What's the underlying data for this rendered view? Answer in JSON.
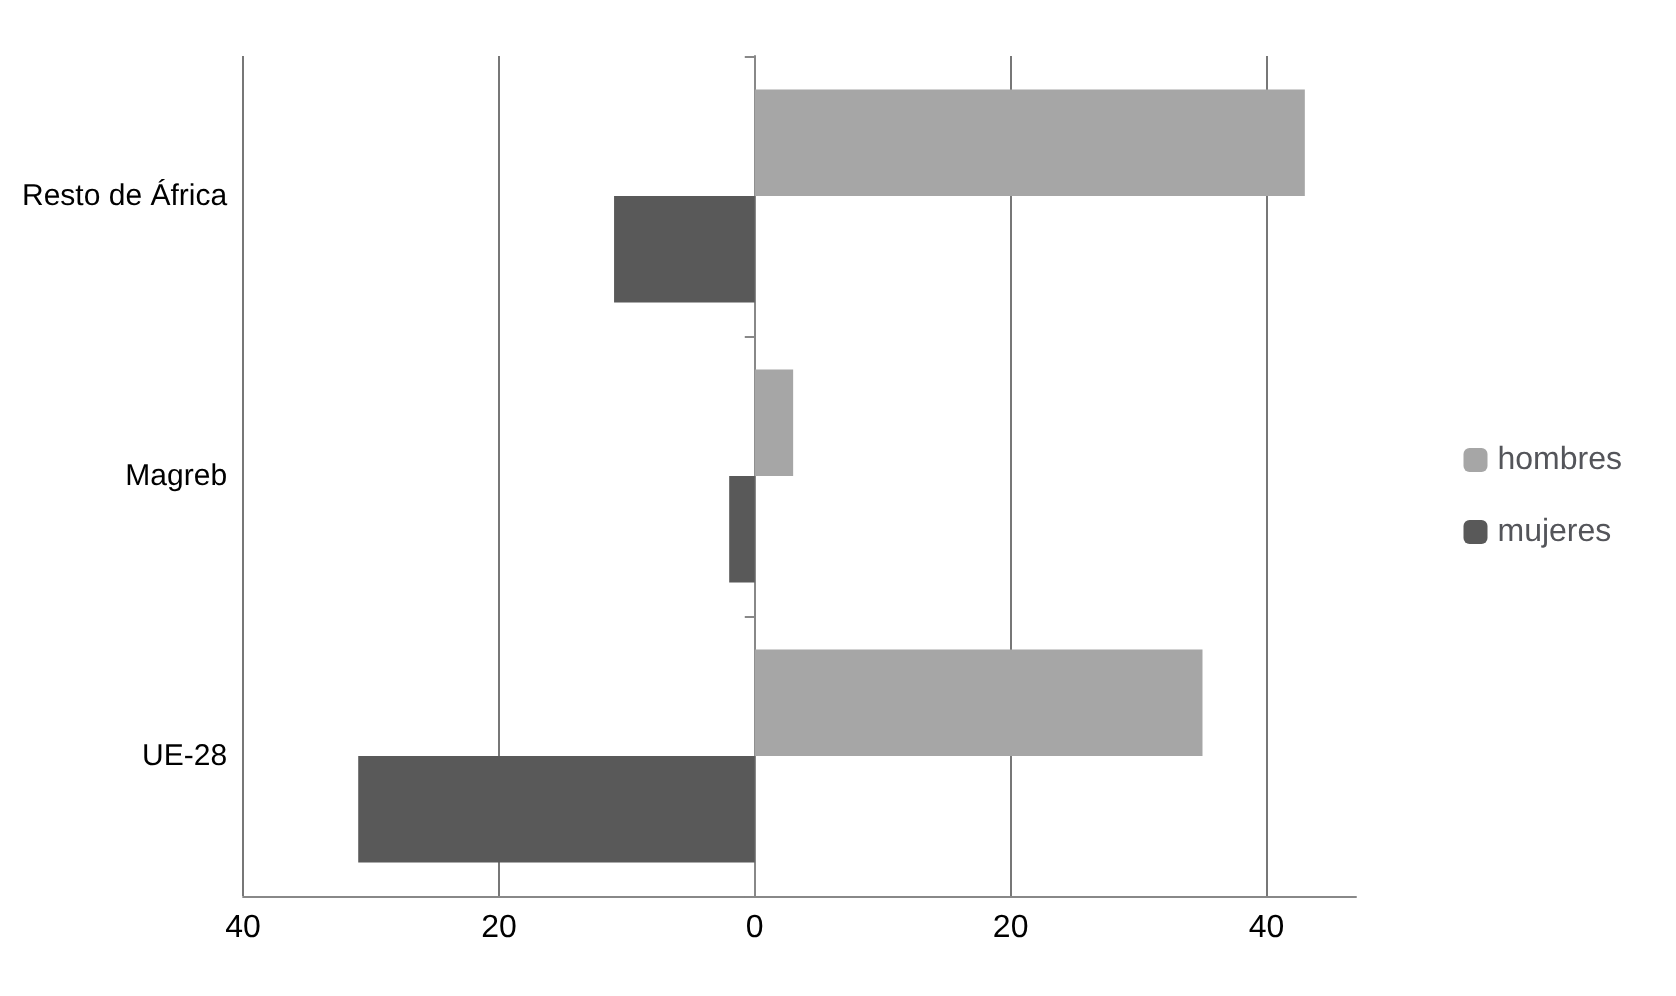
{
  "chart_data": {
    "type": "bar",
    "orientation": "horizontal",
    "categories": [
      "Resto de África",
      "Magreb",
      "UE-28"
    ],
    "series": [
      {
        "name": "hombres",
        "color": "#a6a6a6",
        "values": [
          43,
          3,
          35
        ]
      },
      {
        "name": "mujeres",
        "color": "#595959",
        "values": [
          -11,
          -2,
          -31
        ]
      }
    ],
    "xlim": [
      -40,
      47
    ],
    "xticks": [
      {
        "value": -40,
        "label": "40"
      },
      {
        "value": -20,
        "label": "20"
      },
      0,
      20,
      40
    ],
    "grid": "x",
    "legend": "right"
  }
}
